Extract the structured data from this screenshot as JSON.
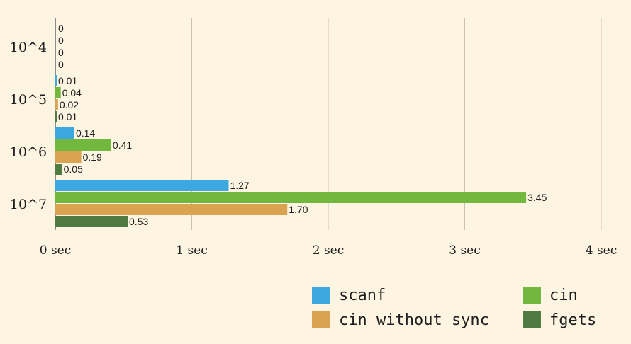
{
  "chart_data": {
    "type": "bar",
    "orientation": "horizontal",
    "categories": [
      "10^4",
      "10^5",
      "10^6",
      "10^7"
    ],
    "series": [
      {
        "name": "scanf",
        "color": "#3ba9e0",
        "values": [
          0,
          0.01,
          0.14,
          1.27
        ],
        "labels": [
          "0",
          "0.01",
          "0.14",
          "1.27"
        ]
      },
      {
        "name": "cin",
        "color": "#72b83f",
        "values": [
          0,
          0.04,
          0.41,
          3.45
        ],
        "labels": [
          "0",
          "0.04",
          "0.41",
          "3.45"
        ]
      },
      {
        "name": "cin without sync",
        "color": "#d9a351",
        "values": [
          0,
          0.02,
          0.19,
          1.7
        ],
        "labels": [
          "0",
          "0.02",
          "0.19",
          "1.70"
        ]
      },
      {
        "name": "fgets",
        "color": "#4f7a42",
        "values": [
          0,
          0.01,
          0.05,
          0.53
        ],
        "labels": [
          "0",
          "0.01",
          "0.05",
          "0.53"
        ]
      }
    ],
    "xlim": [
      0,
      4
    ],
    "xticks": [
      0,
      1,
      2,
      3,
      4
    ],
    "xtick_labels": [
      "0 sec",
      "1 sec",
      "2 sec",
      "3 sec",
      "4 sec"
    ],
    "grid": true,
    "legend": "bottom-right"
  }
}
